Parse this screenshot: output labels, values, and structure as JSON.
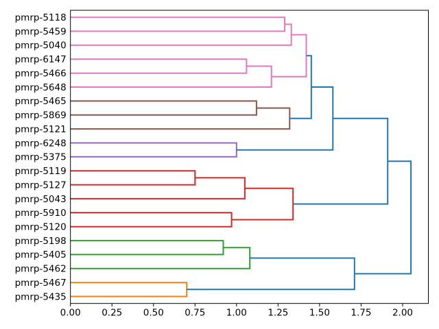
{
  "figure": {
    "background": "#ffffff",
    "title": ""
  },
  "chart_data": {
    "type": "dendrogram",
    "orientation": "left",
    "title": "",
    "xlabel": "",
    "ylabel": "",
    "grid": false,
    "legend": null,
    "x_axis": {
      "range": [
        0,
        2.155
      ],
      "ticks": [
        0.0,
        0.25,
        0.5,
        0.75,
        1.0,
        1.25,
        1.5,
        1.75,
        2.0
      ],
      "tick_labels": [
        "0.00",
        "0.25",
        "0.50",
        "0.75",
        "1.00",
        "1.25",
        "1.50",
        "1.75",
        "2.00"
      ]
    },
    "leaves": [
      "pmrp-5118",
      "pmrp-5459",
      "pmrp-5040",
      "pmrp-6147",
      "pmrp-5466",
      "pmrp-5648",
      "pmrp-5465",
      "pmrp-5869",
      "pmrp-5121",
      "pmrp-6248",
      "pmrp-5375",
      "pmrp-5119",
      "pmrp-5127",
      "pmrp-5043",
      "pmrp-5910",
      "pmrp-5120",
      "pmrp-5198",
      "pmrp-5405",
      "pmrp-5462",
      "pmrp-5467",
      "pmrp-5435"
    ],
    "merges": [
      {
        "id": "A",
        "children": [
          "pmrp-5118",
          "pmrp-5459"
        ],
        "distance": 1.29,
        "color": "pink"
      },
      {
        "id": "B",
        "children": [
          "A",
          "pmrp-5040"
        ],
        "distance": 1.33,
        "color": "pink"
      },
      {
        "id": "C",
        "children": [
          "pmrp-6147",
          "pmrp-5466"
        ],
        "distance": 1.06,
        "color": "pink"
      },
      {
        "id": "D",
        "children": [
          "C",
          "pmrp-5648"
        ],
        "distance": 1.21,
        "color": "pink"
      },
      {
        "id": "E",
        "children": [
          "B",
          "D"
        ],
        "distance": 1.42,
        "color": "pink"
      },
      {
        "id": "F",
        "children": [
          "pmrp-5465",
          "pmrp-5869"
        ],
        "distance": 1.12,
        "color": "brown"
      },
      {
        "id": "G",
        "children": [
          "F",
          "pmrp-5121"
        ],
        "distance": 1.32,
        "color": "brown"
      },
      {
        "id": "H",
        "children": [
          "pmrp-6248",
          "pmrp-5375"
        ],
        "distance": 1.0,
        "color": "purple"
      },
      {
        "id": "I",
        "children": [
          "pmrp-5119",
          "pmrp-5127"
        ],
        "distance": 0.75,
        "color": "red"
      },
      {
        "id": "J",
        "children": [
          "I",
          "pmrp-5043"
        ],
        "distance": 1.05,
        "color": "red"
      },
      {
        "id": "K",
        "children": [
          "pmrp-5910",
          "pmrp-5120"
        ],
        "distance": 0.97,
        "color": "red"
      },
      {
        "id": "L",
        "children": [
          "J",
          "K"
        ],
        "distance": 1.34,
        "color": "red"
      },
      {
        "id": "M",
        "children": [
          "pmrp-5198",
          "pmrp-5405"
        ],
        "distance": 0.92,
        "color": "green"
      },
      {
        "id": "N",
        "children": [
          "M",
          "pmrp-5462"
        ],
        "distance": 1.08,
        "color": "green"
      },
      {
        "id": "O",
        "children": [
          "pmrp-5467",
          "pmrp-5435"
        ],
        "distance": 0.7,
        "color": "orange"
      },
      {
        "id": "P",
        "children": [
          "E",
          "G"
        ],
        "distance": 1.45,
        "color": "blue"
      },
      {
        "id": "Q",
        "children": [
          "P",
          "H"
        ],
        "distance": 1.58,
        "color": "blue"
      },
      {
        "id": "R",
        "children": [
          "Q",
          "L"
        ],
        "distance": 1.91,
        "color": "blue"
      },
      {
        "id": "S",
        "children": [
          "N",
          "O"
        ],
        "distance": 1.71,
        "color": "blue"
      },
      {
        "id": "T",
        "children": [
          "R",
          "S"
        ],
        "distance": 2.05,
        "color": "blue"
      }
    ],
    "palette": {
      "blue": "#1f77b4",
      "orange": "#ff7f0e",
      "green": "#2ca02c",
      "red": "#d62728",
      "purple": "#9467bd",
      "brown": "#8c564b",
      "pink": "#e377c2"
    },
    "axis_color": "#000000",
    "text_color": "#000000"
  }
}
